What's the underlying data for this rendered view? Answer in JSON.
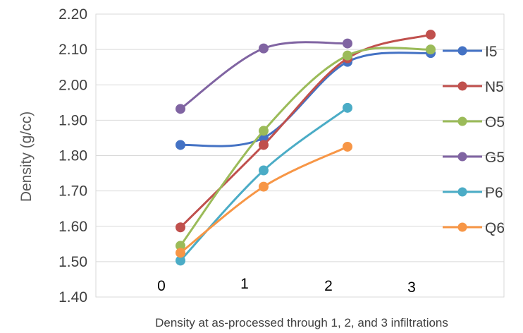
{
  "chart_data": {
    "type": "line",
    "smooth": true,
    "title": "",
    "xlabel": "Density at as-processed through 1, 2, and 3 infiltrations",
    "ylabel": "Density (g/cc)",
    "ylim": [
      1.4,
      2.2
    ],
    "y_ticks": [
      "1.40",
      "1.50",
      "1.60",
      "1.70",
      "1.80",
      "1.90",
      "2.00",
      "2.10",
      "2.20"
    ],
    "categories": [
      "0",
      "1",
      "2",
      "3"
    ],
    "grid": "horizontal",
    "legend_position": "right",
    "series": [
      {
        "name": "I5",
        "color": "#4472C4",
        "values": [
          1.83,
          1.85,
          2.065,
          2.09
        ]
      },
      {
        "name": "N5",
        "color": "#C0504D",
        "values": [
          1.597,
          1.83,
          2.075,
          2.142
        ]
      },
      {
        "name": "O5",
        "color": "#9BBB59",
        "values": [
          1.545,
          1.87,
          2.083,
          2.1
        ]
      },
      {
        "name": "G5",
        "color": "#8064A2",
        "values": [
          1.932,
          2.103,
          2.117,
          null
        ]
      },
      {
        "name": "P6",
        "color": "#4BACC6",
        "values": [
          1.503,
          1.758,
          1.935,
          null
        ]
      },
      {
        "name": "Q6",
        "color": "#F79646",
        "values": [
          1.525,
          1.712,
          1.825,
          null
        ]
      }
    ]
  }
}
